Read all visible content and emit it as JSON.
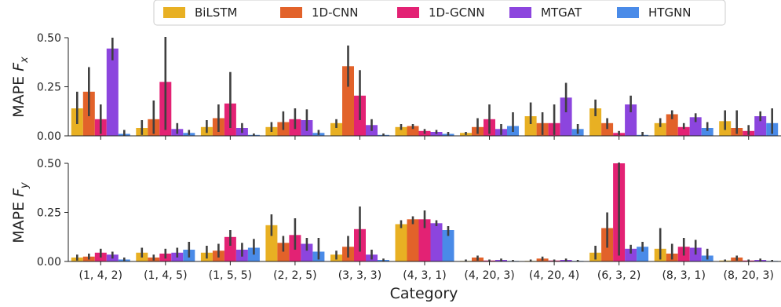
{
  "chart_data": [
    {
      "type": "bar",
      "panel": "top",
      "ylabel_text": "MAPE ",
      "ylabel_sym": "F",
      "ylabel_sub": "x",
      "ylim": [
        0,
        0.5
      ],
      "yticks": [
        "0.00",
        "0.25",
        "0.50"
      ],
      "categories": [
        "(1, 4, 2)",
        "(1, 4, 5)",
        "(1, 5, 5)",
        "(2, 2, 5)",
        "(3, 3, 3)",
        "(4, 3, 1)",
        "(4, 20, 3)",
        "(4, 20, 4)",
        "(6, 3, 2)",
        "(8, 3, 1)",
        "(8, 20, 3)"
      ],
      "series": [
        {
          "name": "BiLSTM",
          "color": "#E8B023",
          "values": [
            0.14,
            0.04,
            0.045,
            0.045,
            0.065,
            0.045,
            0.015,
            0.1,
            0.14,
            0.065,
            0.075
          ],
          "err_low": [
            0.06,
            0.005,
            0.015,
            0.02,
            0.04,
            0.03,
            0.005,
            0.06,
            0.1,
            0.045,
            0.03
          ],
          "err_high": [
            0.225,
            0.08,
            0.08,
            0.07,
            0.085,
            0.06,
            0.02,
            0.17,
            0.185,
            0.09,
            0.13
          ]
        },
        {
          "name": "1D-CNN",
          "color": "#E2622A",
          "values": [
            0.225,
            0.085,
            0.09,
            0.07,
            0.355,
            0.05,
            0.045,
            0.065,
            0.065,
            0.11,
            0.04
          ],
          "err_low": [
            0.1,
            0.01,
            0.02,
            0.03,
            0.25,
            0.035,
            0.01,
            0.005,
            0.035,
            0.085,
            0.01
          ],
          "err_high": [
            0.35,
            0.18,
            0.16,
            0.125,
            0.46,
            0.06,
            0.09,
            0.12,
            0.09,
            0.13,
            0.13
          ]
        },
        {
          "name": "1D-GCNN",
          "color": "#E32274",
          "values": [
            0.085,
            0.275,
            0.165,
            0.085,
            0.205,
            0.025,
            0.085,
            0.065,
            0.015,
            0.045,
            0.025
          ],
          "err_low": [
            0.01,
            0.03,
            0.04,
            0.035,
            0.08,
            0.01,
            0.01,
            0.005,
            0.005,
            0.035,
            0.005
          ],
          "err_high": [
            0.16,
            0.51,
            0.325,
            0.14,
            0.335,
            0.035,
            0.16,
            0.16,
            0.025,
            0.065,
            0.055
          ]
        },
        {
          "name": "MTGAT",
          "color": "#8C45DE",
          "values": [
            0.445,
            0.035,
            0.04,
            0.08,
            0.055,
            0.02,
            0.035,
            0.195,
            0.16,
            0.095,
            0.1
          ],
          "err_low": [
            0.385,
            0.01,
            0.015,
            0.025,
            0.025,
            0.01,
            0.005,
            0.12,
            0.12,
            0.07,
            0.075
          ],
          "err_high": [
            0.5,
            0.065,
            0.065,
            0.135,
            0.085,
            0.03,
            0.06,
            0.27,
            0.205,
            0.115,
            0.125
          ]
        },
        {
          "name": "HTGNN",
          "color": "#4A8BE8",
          "values": [
            0.01,
            0.015,
            0.005,
            0.015,
            0.005,
            0.01,
            0.05,
            0.035,
            0.005,
            0.04,
            0.065
          ],
          "err_low": [
            0.002,
            0.005,
            0.001,
            0.005,
            0.001,
            0.003,
            0.02,
            0.01,
            0.001,
            0.025,
            0.01
          ],
          "err_high": [
            0.03,
            0.03,
            0.012,
            0.03,
            0.012,
            0.02,
            0.12,
            0.06,
            0.02,
            0.07,
            0.14
          ]
        }
      ]
    },
    {
      "type": "bar",
      "panel": "bottom",
      "ylabel_text": "MAPE ",
      "ylabel_sym": "F",
      "ylabel_sub": "y",
      "xlabel": "Category",
      "ylim": [
        0,
        0.5
      ],
      "yticks": [
        "0.00",
        "0.25",
        "0.50"
      ],
      "categories": [
        "(1, 4, 2)",
        "(1, 4, 5)",
        "(1, 5, 5)",
        "(2, 2, 5)",
        "(3, 3, 3)",
        "(4, 3, 1)",
        "(4, 20, 3)",
        "(4, 20, 4)",
        "(6, 3, 2)",
        "(8, 3, 1)",
        "(8, 20, 3)"
      ],
      "series": [
        {
          "name": "BiLSTM",
          "color": "#E8B023",
          "values": [
            0.02,
            0.045,
            0.045,
            0.185,
            0.035,
            0.19,
            0.003,
            0.003,
            0.045,
            0.065,
            0.005
          ],
          "err_low": [
            0.005,
            0.02,
            0.015,
            0.13,
            0.01,
            0.17,
            0.001,
            0.001,
            0.01,
            0.01,
            0.001
          ],
          "err_high": [
            0.035,
            0.07,
            0.08,
            0.24,
            0.055,
            0.21,
            0.01,
            0.01,
            0.08,
            0.17,
            0.01
          ]
        },
        {
          "name": "1D-CNN",
          "color": "#E2622A",
          "values": [
            0.025,
            0.02,
            0.055,
            0.095,
            0.075,
            0.215,
            0.02,
            0.015,
            0.17,
            0.04,
            0.02
          ],
          "err_low": [
            0.01,
            0.005,
            0.02,
            0.05,
            0.02,
            0.19,
            0.005,
            0.005,
            0.07,
            0.01,
            0.005
          ],
          "err_high": [
            0.04,
            0.035,
            0.09,
            0.13,
            0.13,
            0.23,
            0.03,
            0.025,
            0.25,
            0.09,
            0.03
          ]
        },
        {
          "name": "1D-GCNN",
          "color": "#E32274",
          "values": [
            0.045,
            0.04,
            0.125,
            0.135,
            0.165,
            0.215,
            0.005,
            0.005,
            0.5,
            0.075,
            0.005
          ],
          "err_low": [
            0.02,
            0.015,
            0.08,
            0.06,
            0.05,
            0.17,
            0.001,
            0.001,
            0.03,
            0.03,
            0.001
          ],
          "err_high": [
            0.065,
            0.065,
            0.16,
            0.22,
            0.28,
            0.26,
            0.01,
            0.01,
            0.51,
            0.12,
            0.01
          ]
        },
        {
          "name": "MTGAT",
          "color": "#8C45DE",
          "values": [
            0.035,
            0.045,
            0.06,
            0.09,
            0.035,
            0.195,
            0.008,
            0.008,
            0.065,
            0.07,
            0.008
          ],
          "err_low": [
            0.015,
            0.02,
            0.025,
            0.055,
            0.01,
            0.18,
            0.002,
            0.002,
            0.04,
            0.035,
            0.002
          ],
          "err_high": [
            0.05,
            0.07,
            0.095,
            0.12,
            0.06,
            0.21,
            0.015,
            0.015,
            0.085,
            0.11,
            0.015
          ]
        },
        {
          "name": "HTGNN",
          "color": "#4A8BE8",
          "values": [
            0.01,
            0.06,
            0.07,
            0.05,
            0.008,
            0.16,
            0.003,
            0.003,
            0.075,
            0.03,
            0.003
          ],
          "err_low": [
            0.003,
            0.02,
            0.035,
            0.01,
            0.002,
            0.13,
            0.001,
            0.001,
            0.05,
            0.01,
            0.001
          ],
          "err_high": [
            0.02,
            0.1,
            0.115,
            0.12,
            0.015,
            0.18,
            0.008,
            0.008,
            0.1,
            0.065,
            0.008
          ]
        }
      ]
    }
  ],
  "legend": [
    "BiLSTM",
    "1D-CNN",
    "1D-GCNN",
    "MTGAT",
    "HTGNN"
  ],
  "colors": {
    "BiLSTM": "#E8B023",
    "1D-CNN": "#E2622A",
    "1D-GCNN": "#E32274",
    "MTGAT": "#8C45DE",
    "HTGNN": "#4A8BE8",
    "error_bar": "#3f3f3f"
  },
  "legend_placement": "top-center",
  "grid": false
}
